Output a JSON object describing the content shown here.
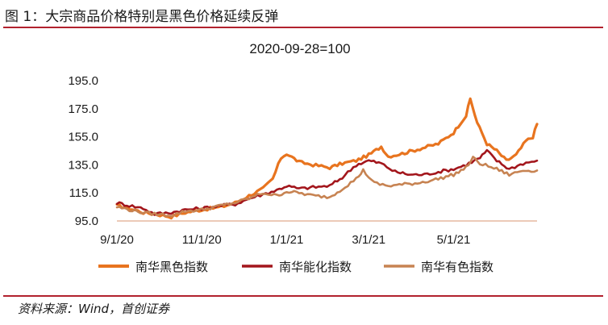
{
  "figure": {
    "title": "图 1：大宗商品价格特别是黑色价格延续反弹",
    "source": "资料来源：Wind，首创证券"
  },
  "colors": {
    "rule": "#b2222e",
    "black_index": "#e8741f",
    "energy_index": "#a3161c",
    "nonferrous_index": "#c78352"
  },
  "chart_data": {
    "type": "line",
    "title": "2020-09-28=100",
    "xlabel": "",
    "ylabel": "",
    "ylim": [
      95,
      195
    ],
    "y_ticks": [
      "195.0",
      "175.0",
      "155.0",
      "135.0",
      "115.0",
      "95.0"
    ],
    "x_ticks": [
      "9/1/20",
      "11/1/20",
      "1/1/21",
      "3/1/21",
      "5/1/21"
    ],
    "x_range": [
      "2020-09-01",
      "2021-06-30"
    ],
    "grid": false,
    "legend_position": "bottom",
    "series": [
      {
        "name": "南华黑色指数",
        "color": "#e8741f",
        "points": [
          [
            "2020-09-01",
            106
          ],
          [
            "2020-09-10",
            104
          ],
          [
            "2020-09-20",
            101
          ],
          [
            "2020-09-28",
            100
          ],
          [
            "2020-10-10",
            98
          ],
          [
            "2020-10-20",
            101
          ],
          [
            "2020-11-01",
            103
          ],
          [
            "2020-11-15",
            105
          ],
          [
            "2020-11-25",
            108
          ],
          [
            "2020-12-05",
            113
          ],
          [
            "2020-12-15",
            118
          ],
          [
            "2020-12-22",
            125
          ],
          [
            "2020-12-28",
            140
          ],
          [
            "2021-01-01",
            143
          ],
          [
            "2021-01-10",
            137
          ],
          [
            "2021-01-20",
            135
          ],
          [
            "2021-02-01",
            133
          ],
          [
            "2021-02-10",
            136
          ],
          [
            "2021-02-20",
            138
          ],
          [
            "2021-03-01",
            142
          ],
          [
            "2021-03-10",
            148
          ],
          [
            "2021-03-15",
            141
          ],
          [
            "2021-03-25",
            143
          ],
          [
            "2021-04-05",
            146
          ],
          [
            "2021-04-20",
            150
          ],
          [
            "2021-05-01",
            158
          ],
          [
            "2021-05-06",
            165
          ],
          [
            "2021-05-10",
            170
          ],
          [
            "2021-05-13",
            182
          ],
          [
            "2021-05-18",
            165
          ],
          [
            "2021-05-25",
            150
          ],
          [
            "2021-06-01",
            145
          ],
          [
            "2021-06-08",
            138
          ],
          [
            "2021-06-15",
            142
          ],
          [
            "2021-06-22",
            152
          ],
          [
            "2021-06-27",
            155
          ],
          [
            "2021-06-30",
            164
          ]
        ]
      },
      {
        "name": "南华能化指数",
        "color": "#a3161c",
        "points": [
          [
            "2020-09-01",
            108
          ],
          [
            "2020-09-10",
            106
          ],
          [
            "2020-09-20",
            104
          ],
          [
            "2020-09-28",
            100
          ],
          [
            "2020-10-10",
            101
          ],
          [
            "2020-10-20",
            103
          ],
          [
            "2020-11-01",
            104
          ],
          [
            "2020-11-15",
            106
          ],
          [
            "2020-11-25",
            107
          ],
          [
            "2020-12-05",
            111
          ],
          [
            "2020-12-15",
            114
          ],
          [
            "2020-12-25",
            117
          ],
          [
            "2021-01-01",
            120
          ],
          [
            "2021-01-10",
            118
          ],
          [
            "2021-01-20",
            119
          ],
          [
            "2021-02-01",
            120
          ],
          [
            "2021-02-10",
            126
          ],
          [
            "2021-02-20",
            135
          ],
          [
            "2021-03-01",
            138
          ],
          [
            "2021-03-10",
            136
          ],
          [
            "2021-03-20",
            130
          ],
          [
            "2021-03-31",
            128
          ],
          [
            "2021-04-10",
            128
          ],
          [
            "2021-04-20",
            130
          ],
          [
            "2021-05-01",
            132
          ],
          [
            "2021-05-10",
            135
          ],
          [
            "2021-05-20",
            140
          ],
          [
            "2021-05-25",
            145
          ],
          [
            "2021-06-01",
            138
          ],
          [
            "2021-06-10",
            132
          ],
          [
            "2021-06-20",
            136
          ],
          [
            "2021-06-30",
            138
          ]
        ]
      },
      {
        "name": "南华有色指数",
        "color": "#c78352",
        "points": [
          [
            "2020-09-01",
            105
          ],
          [
            "2020-09-10",
            103
          ],
          [
            "2020-09-20",
            101
          ],
          [
            "2020-09-28",
            100
          ],
          [
            "2020-10-10",
            99
          ],
          [
            "2020-10-20",
            102
          ],
          [
            "2020-11-01",
            103
          ],
          [
            "2020-11-15",
            106
          ],
          [
            "2020-11-25",
            108
          ],
          [
            "2020-12-05",
            111
          ],
          [
            "2020-12-15",
            115
          ],
          [
            "2020-12-25",
            113
          ],
          [
            "2021-01-01",
            116
          ],
          [
            "2021-01-10",
            115
          ],
          [
            "2021-01-20",
            113
          ],
          [
            "2021-02-01",
            112
          ],
          [
            "2021-02-10",
            118
          ],
          [
            "2021-02-20",
            125
          ],
          [
            "2021-02-25",
            131
          ],
          [
            "2021-03-05",
            122
          ],
          [
            "2021-03-15",
            120
          ],
          [
            "2021-03-25",
            121
          ],
          [
            "2021-04-05",
            122
          ],
          [
            "2021-04-20",
            125
          ],
          [
            "2021-05-01",
            128
          ],
          [
            "2021-05-10",
            133
          ],
          [
            "2021-05-15",
            140
          ],
          [
            "2021-05-20",
            136
          ],
          [
            "2021-06-01",
            132
          ],
          [
            "2021-06-10",
            128
          ],
          [
            "2021-06-20",
            131
          ],
          [
            "2021-06-30",
            131
          ]
        ]
      }
    ]
  }
}
